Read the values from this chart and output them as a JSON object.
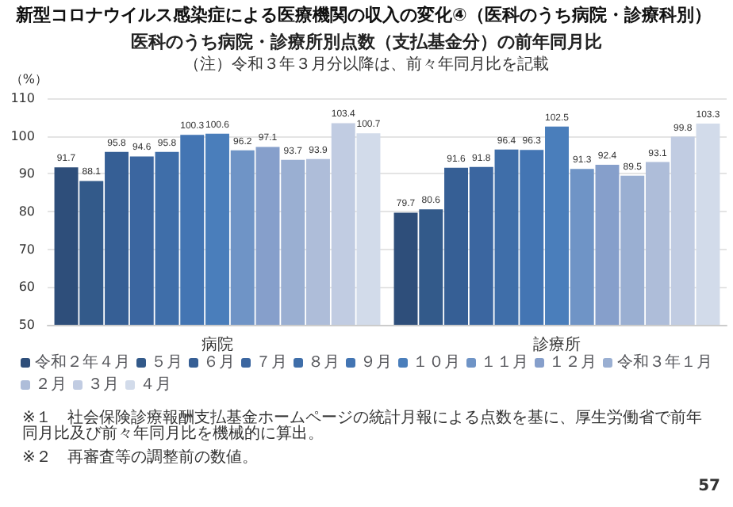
{
  "chart_data": {
    "type": "bar",
    "title": "新型コロナウイルス感染症による医療機関の収入の変化④（医科のうち病院・診療科別）",
    "subtitle": "医科のうち病院・診療所別点数（支払基金分）の前年同月比",
    "ylabel": "（%）",
    "categories": [
      "病院",
      "診療所"
    ],
    "series": [
      {
        "name": "令和２年４月",
        "color": "#2e4e7a",
        "values": [
          91.7,
          79.7
        ]
      },
      {
        "name": "５月",
        "color": "#335a8a",
        "values": [
          88.1,
          80.6
        ]
      },
      {
        "name": "６月",
        "color": "#365f95",
        "values": [
          95.8,
          91.6
        ]
      },
      {
        "name": "７月",
        "color": "#3b66a0",
        "values": [
          94.6,
          91.8
        ]
      },
      {
        "name": "８月",
        "color": "#3f6ea9",
        "values": [
          95.8,
          96.4
        ]
      },
      {
        "name": "９月",
        "color": "#4375b3",
        "values": [
          100.3,
          96.3
        ]
      },
      {
        "name": "１０月",
        "color": "#4a7ebb",
        "values": [
          100.6,
          102.5
        ]
      },
      {
        "name": "１１月",
        "color": "#6f94c6",
        "values": [
          96.2,
          91.3
        ]
      },
      {
        "name": "１２月",
        "color": "#869fcb",
        "values": [
          97.1,
          92.4
        ]
      },
      {
        "name": "令和３年１月",
        "color": "#9aafd2",
        "values": [
          93.7,
          89.5
        ]
      },
      {
        "name": "２月",
        "color": "#aebdd9",
        "values": [
          93.9,
          93.1
        ]
      },
      {
        "name": "３月",
        "color": "#c1cce2",
        "values": [
          103.4,
          99.8
        ]
      },
      {
        "name": "４月",
        "color": "#d2dbea",
        "values": [
          100.7,
          103.3
        ]
      }
    ],
    "ylim": [
      50,
      110
    ],
    "yticks": [
      50,
      60,
      70,
      80,
      90,
      100,
      110
    ],
    "grid": "y",
    "legend": "bottom",
    "data_labels": true,
    "annotations": [
      "（注）令和３年３月分以降は、前々年同月比を記載",
      "※１　社会保険診療報酬支払基金ホームページの統計月報による点数を基に、厚生労働省で前年同月比及び前々年同月比を機械的に算出。",
      "※２　再審査等の調整前の数値。",
      "57"
    ]
  }
}
